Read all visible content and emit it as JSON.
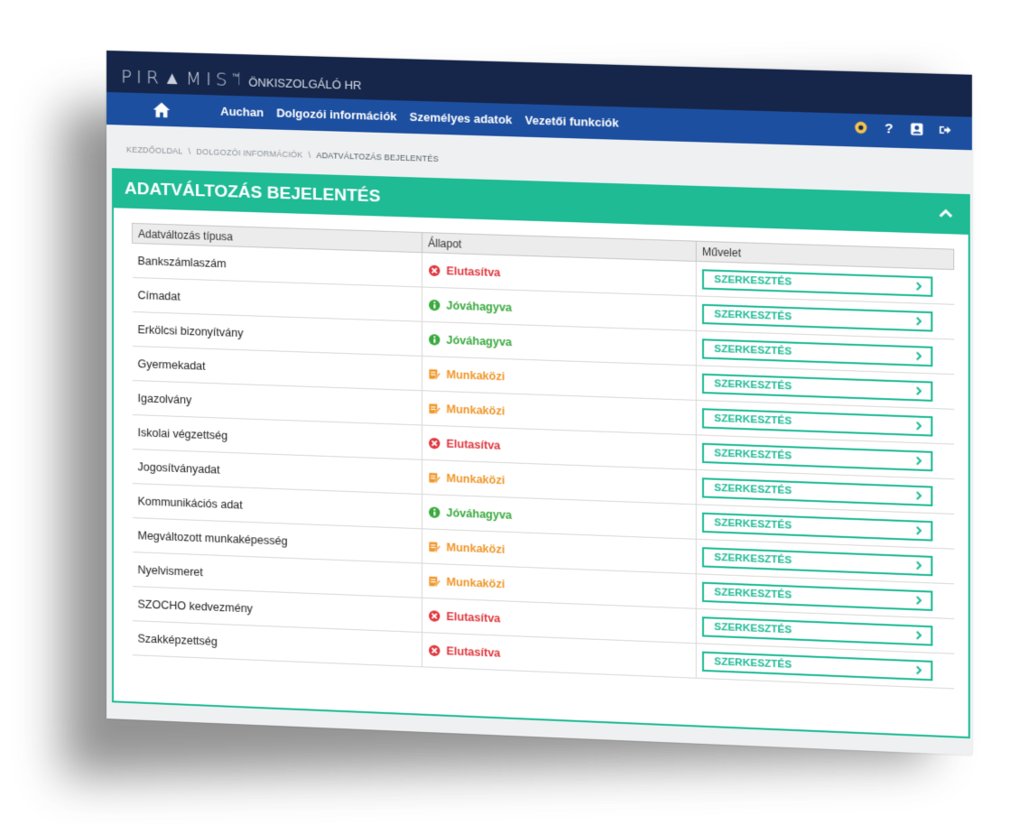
{
  "app": {
    "logo": "PIR▲MIS",
    "logo_tm": "™",
    "title": "ÖNKISZOLGÁLÓ HR"
  },
  "nav": {
    "items": [
      "Auchan",
      "Dolgozói információk",
      "Személyes adatok",
      "Vezetői funkciók"
    ],
    "icons": [
      "eye-icon",
      "help-icon",
      "profile-icon",
      "logout-icon"
    ],
    "help_label": "?"
  },
  "breadcrumb": {
    "items": [
      "KEZDŐOLDAL",
      "DOLGOZÓI INFORMÁCIÓK",
      "ADATVÁLTOZÁS BEJELENTÉS"
    ],
    "separator": "\\"
  },
  "panel": {
    "title": "ADATVÁLTOZÁS BEJELENTÉS"
  },
  "table": {
    "headers": [
      "Adatváltozás típusa",
      "Állapot",
      "Művelet"
    ],
    "edit_label": "SZERKESZTÉS",
    "rows": [
      {
        "type": "Bankszámlaszám",
        "status": "Elutasítva",
        "kind": "rejected"
      },
      {
        "type": "Címadat",
        "status": "Jóváhagyva",
        "kind": "approved"
      },
      {
        "type": "Erkölcsi bizonyítvány",
        "status": "Jóváhagyva",
        "kind": "approved"
      },
      {
        "type": "Gyermekadat",
        "status": "Munkaközi",
        "kind": "draft"
      },
      {
        "type": "Igazolvány",
        "status": "Munkaközi",
        "kind": "draft"
      },
      {
        "type": "Iskolai végzettség",
        "status": "Elutasítva",
        "kind": "rejected"
      },
      {
        "type": "Jogosítványadat",
        "status": "Munkaközi",
        "kind": "draft"
      },
      {
        "type": "Kommunikációs adat",
        "status": "Jóváhagyva",
        "kind": "approved"
      },
      {
        "type": "Megváltozott munkaképesség",
        "status": "Munkaközi",
        "kind": "draft"
      },
      {
        "type": "Nyelvismeret",
        "status": "Munkaközi",
        "kind": "draft"
      },
      {
        "type": "SZOCHO kedvezmény",
        "status": "Elutasítva",
        "kind": "rejected"
      },
      {
        "type": "Szakképzettség",
        "status": "Elutasítva",
        "kind": "rejected"
      }
    ]
  },
  "colors": {
    "header_bg": "#16264a",
    "nav_bg": "#1d4fa0",
    "accent": "#1ebb95",
    "rejected": "#e0383e",
    "approved": "#3aaa3f",
    "draft": "#f0972a",
    "eye_icon": "#f2c14e"
  }
}
